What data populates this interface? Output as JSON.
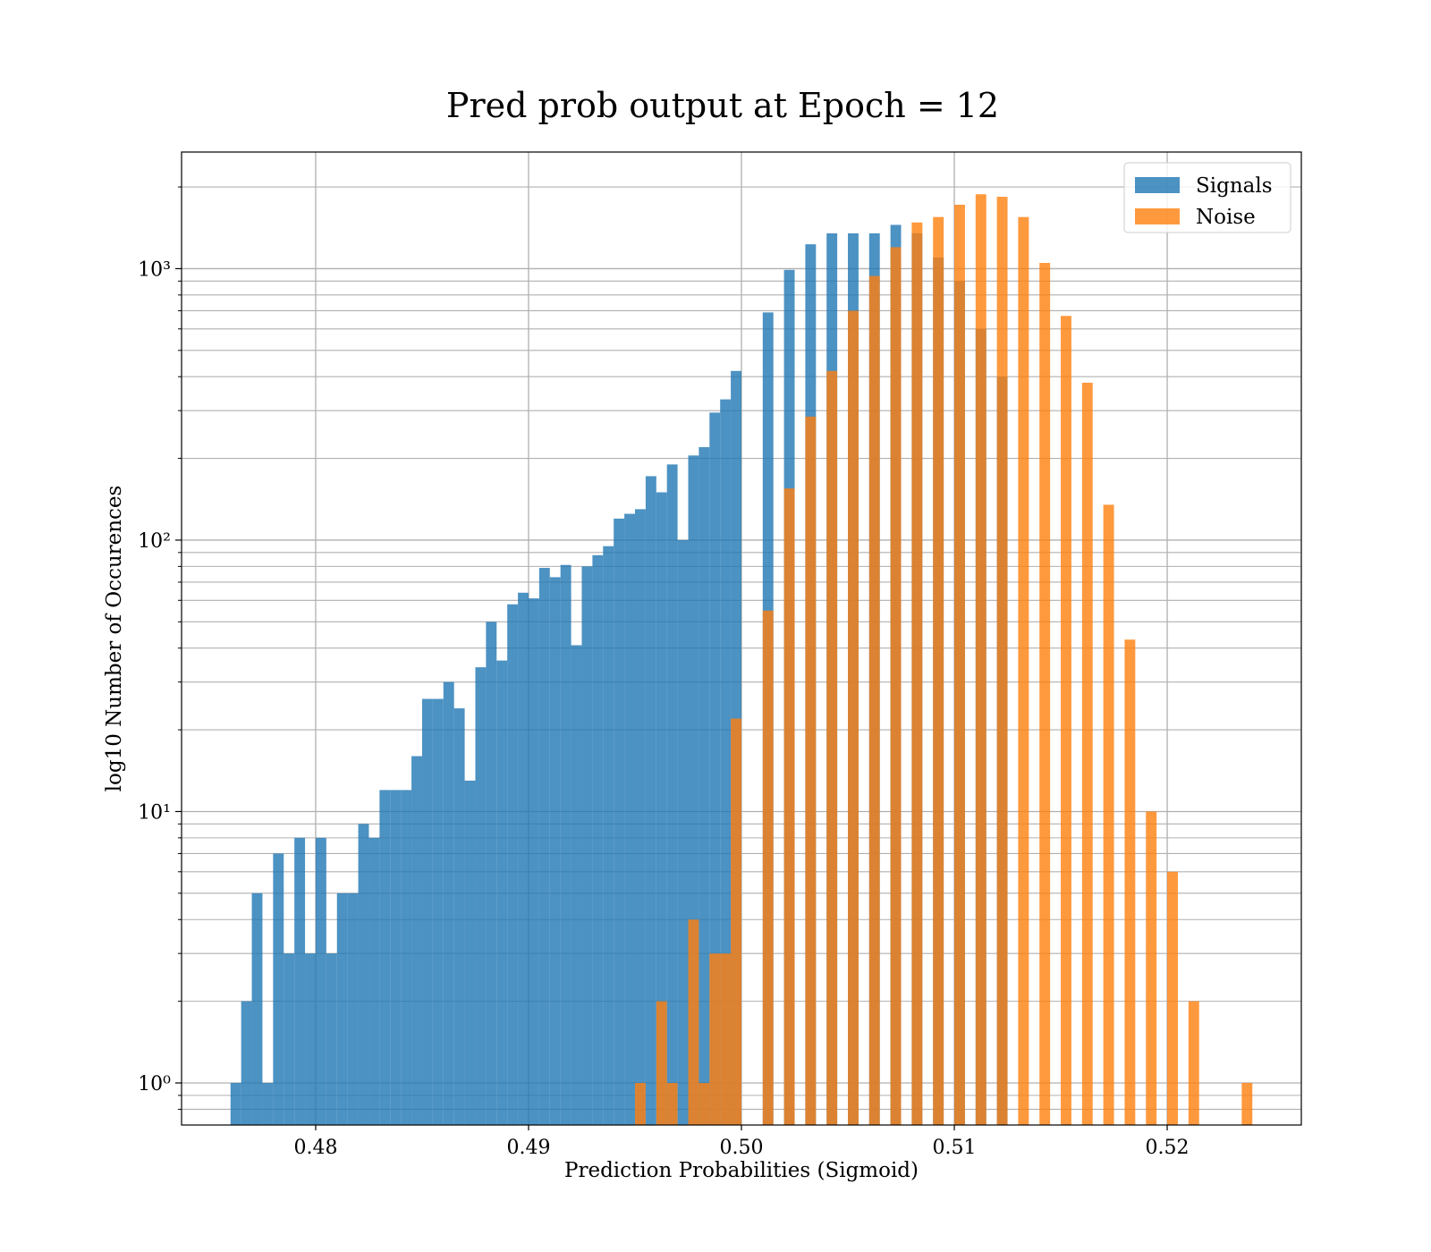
{
  "chart_data": {
    "type": "histogram",
    "title": "Pred prob output at Epoch = 12",
    "xlabel": "Prediction Probabilities (Sigmoid)",
    "ylabel": "log10 Number of Occurences",
    "xlim": [
      0.4737,
      0.5263
    ],
    "ylim": [
      0.7,
      2690
    ],
    "ylog": true,
    "grid": true,
    "legend": "upper right",
    "alpha": 0.8,
    "xticks": [
      0.48,
      0.49,
      {
        "value": 0.5,
        "label": "0.50"
      },
      0.51,
      0.52
    ],
    "yticks": [
      {
        "value": 1,
        "label": "10⁰"
      },
      {
        "value": 10,
        "label": "10¹"
      },
      {
        "value": 100,
        "label": "10²"
      },
      {
        "value": 1000,
        "label": "10³"
      }
    ],
    "yticks_minor": [
      0.8,
      0.9,
      2,
      3,
      4,
      5,
      6,
      7,
      8,
      9,
      20,
      30,
      40,
      50,
      60,
      70,
      80,
      90,
      200,
      300,
      400,
      500,
      600,
      700,
      800,
      900,
      2000
    ],
    "series": [
      {
        "name": "Signals",
        "color": "#1f77b4",
        "bins": [
          0.476,
          0.4765,
          0.477,
          0.4775,
          0.478,
          0.4785,
          0.479,
          0.4795,
          0.48,
          0.4805,
          0.481,
          0.4815,
          0.482,
          0.4825,
          0.483,
          0.4835,
          0.484,
          0.4845,
          0.485,
          0.4855,
          0.486,
          0.4865,
          0.487,
          0.4875,
          0.488,
          0.4885,
          0.489,
          0.4895,
          0.49,
          0.4905,
          0.491,
          0.4915,
          0.492,
          0.4925,
          0.493,
          0.4935,
          0.494,
          0.4945,
          0.495,
          0.4955,
          0.496,
          0.4965,
          0.497,
          0.4975,
          0.498,
          0.4985,
          0.499,
          0.4995,
          0.5,
          0.5005,
          0.501,
          0.5015,
          0.502,
          0.5025,
          0.503,
          0.5035,
          0.504,
          0.5045,
          0.505,
          0.5055,
          0.506,
          0.5065,
          0.507,
          0.5075,
          0.508,
          0.5085,
          0.509,
          0.5095,
          0.51,
          0.5105,
          0.511,
          0.5115,
          0.512,
          0.5125
        ],
        "values": [
          1,
          2,
          5,
          1,
          7,
          3,
          8,
          3,
          8,
          3,
          5,
          5,
          9,
          8,
          12,
          12,
          12,
          16,
          26,
          26,
          30,
          24,
          13,
          34,
          50,
          36,
          58,
          64,
          61,
          79,
          73,
          81,
          41,
          80,
          88,
          95,
          120,
          125,
          130,
          172,
          150,
          190,
          100,
          205,
          220,
          295,
          330,
          420,
          0,
          0,
          690,
          0,
          990,
          0,
          1230,
          0,
          1350,
          0,
          1350,
          0,
          1350,
          0,
          1450,
          0,
          1350,
          0,
          1100,
          0,
          900,
          0,
          600,
          0,
          400
        ]
      },
      {
        "name": "Noise",
        "color": "#ff7f0e",
        "bins": [
          0.495,
          0.4955,
          0.496,
          0.4965,
          0.497,
          0.4975,
          0.498,
          0.4985,
          0.499,
          0.4995,
          0.5,
          0.5005,
          0.501,
          0.5015,
          0.502,
          0.5025,
          0.503,
          0.5035,
          0.504,
          0.5045,
          0.505,
          0.5055,
          0.506,
          0.5065,
          0.507,
          0.5075,
          0.508,
          0.5085,
          0.509,
          0.5095,
          0.51,
          0.5105,
          0.511,
          0.5115,
          0.512,
          0.5125,
          0.513,
          0.5135,
          0.514,
          0.5145,
          0.515,
          0.5155,
          0.516,
          0.5165,
          0.517,
          0.5175,
          0.518,
          0.5185,
          0.519,
          0.5195,
          0.52,
          0.5205,
          0.521,
          0.5215,
          0.522,
          0.5225,
          0.523,
          0.5235,
          0.524
        ],
        "values": [
          1,
          0,
          2,
          1,
          0,
          4,
          1,
          3,
          3,
          22,
          0,
          0,
          55,
          0,
          155,
          0,
          285,
          0,
          420,
          0,
          700,
          0,
          940,
          0,
          1200,
          0,
          1480,
          0,
          1550,
          0,
          1720,
          0,
          1880,
          0,
          1840,
          0,
          1550,
          0,
          1050,
          0,
          670,
          0,
          380,
          0,
          135,
          0,
          43,
          0,
          10,
          0,
          6,
          0,
          2,
          0,
          0,
          0,
          0,
          1
        ]
      }
    ]
  }
}
